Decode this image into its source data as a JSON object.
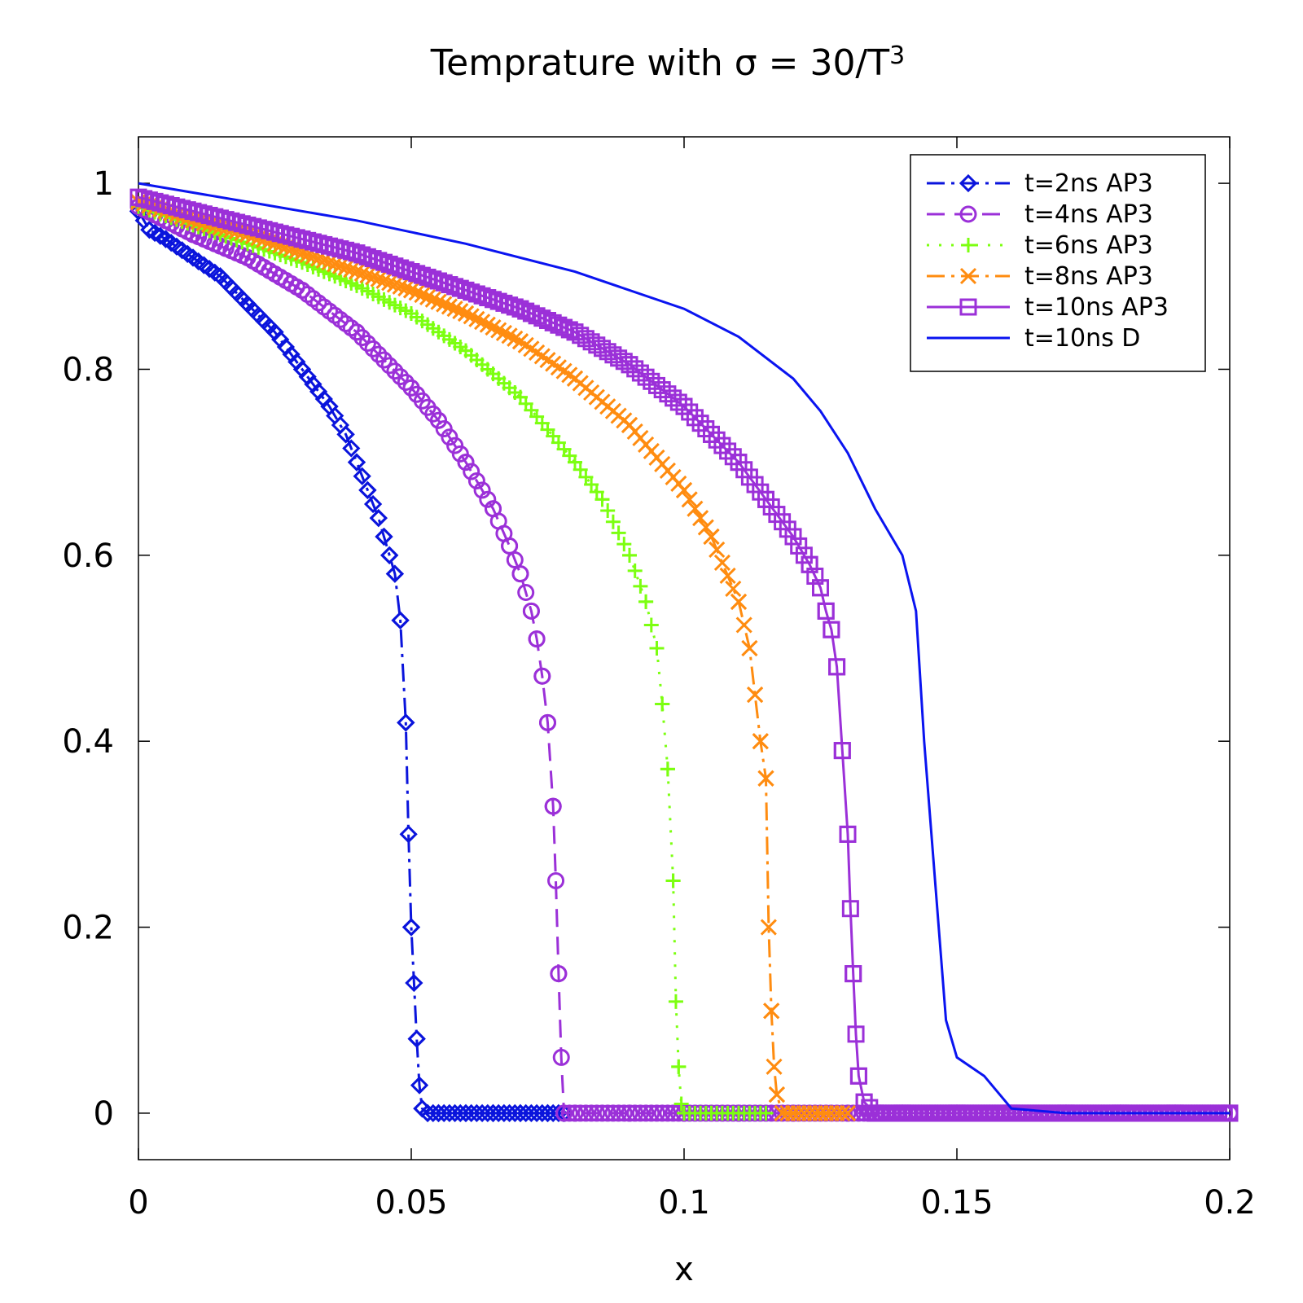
{
  "chart_data": {
    "type": "line",
    "title": "Temprature with σ = 30/T",
    "title_superscript": "3",
    "xlabel": "x",
    "ylabel": "",
    "xlim": [
      0,
      0.2
    ],
    "ylim": [
      -0.05,
      1.05
    ],
    "xticks": [
      0,
      0.05,
      0.1,
      0.15,
      0.2
    ],
    "xtick_labels": [
      "0",
      "0.05",
      "0.1",
      "0.15",
      "0.2"
    ],
    "yticks": [
      0,
      0.2,
      0.4,
      0.6,
      0.8,
      1
    ],
    "ytick_labels": [
      "0",
      "0.2",
      "0.4",
      "0.6",
      "0.8",
      "1"
    ],
    "grid": false,
    "legend_position": "top-right",
    "series": [
      {
        "name": "t=2ns AP3",
        "color": "#0a14dc",
        "marker": "diamond",
        "dash": "dashdot",
        "x": [
          0,
          0.002,
          0.005,
          0.01,
          0.015,
          0.02,
          0.025,
          0.03,
          0.035,
          0.038,
          0.04,
          0.042,
          0.044,
          0.045,
          0.046,
          0.047,
          0.048,
          0.049,
          0.0495,
          0.05,
          0.0505,
          0.051,
          0.0515,
          0.052,
          0.053,
          0.055,
          0.06,
          0.065,
          0.07,
          0.075,
          0.078
        ],
        "y": [
          0.97,
          0.95,
          0.94,
          0.92,
          0.9,
          0.87,
          0.84,
          0.8,
          0.76,
          0.73,
          0.7,
          0.67,
          0.64,
          0.62,
          0.6,
          0.58,
          0.53,
          0.42,
          0.3,
          0.2,
          0.14,
          0.08,
          0.03,
          0.005,
          0,
          0,
          0,
          0,
          0,
          0,
          0
        ]
      },
      {
        "name": "t=4ns AP3",
        "color": "#9b30d8",
        "marker": "circle",
        "dash": "dashed",
        "x": [
          0,
          0.005,
          0.01,
          0.02,
          0.03,
          0.04,
          0.05,
          0.055,
          0.06,
          0.065,
          0.068,
          0.07,
          0.072,
          0.073,
          0.074,
          0.075,
          0.076,
          0.0765,
          0.077,
          0.0775,
          0.078,
          0.08,
          0.09,
          0.1,
          0.11,
          0.12,
          0.13,
          0.14,
          0.15,
          0.16,
          0.17,
          0.18,
          0.19,
          0.2
        ],
        "y": [
          0.975,
          0.96,
          0.945,
          0.92,
          0.885,
          0.84,
          0.78,
          0.745,
          0.7,
          0.65,
          0.61,
          0.58,
          0.54,
          0.51,
          0.47,
          0.42,
          0.33,
          0.25,
          0.15,
          0.06,
          0,
          0,
          0,
          0,
          0,
          0,
          0,
          0,
          0,
          0,
          0,
          0,
          0,
          0
        ]
      },
      {
        "name": "t=6ns AP3",
        "color": "#7cff10",
        "marker": "plus",
        "dash": "dotted",
        "x": [
          0,
          0.01,
          0.02,
          0.03,
          0.04,
          0.05,
          0.06,
          0.07,
          0.08,
          0.085,
          0.09,
          0.093,
          0.095,
          0.096,
          0.097,
          0.098,
          0.0985,
          0.099,
          0.0995,
          0.1,
          0.105,
          0.11,
          0.115
        ],
        "y": [
          0.975,
          0.955,
          0.935,
          0.915,
          0.89,
          0.86,
          0.82,
          0.77,
          0.7,
          0.66,
          0.6,
          0.55,
          0.5,
          0.44,
          0.37,
          0.25,
          0.12,
          0.05,
          0.01,
          0,
          0,
          0,
          0
        ]
      },
      {
        "name": "t=8ns AP3",
        "color": "#ff8c10",
        "marker": "cross",
        "dash": "dashdot",
        "x": [
          0,
          0.01,
          0.02,
          0.03,
          0.04,
          0.05,
          0.06,
          0.07,
          0.08,
          0.09,
          0.1,
          0.105,
          0.11,
          0.112,
          0.113,
          0.114,
          0.115,
          0.1155,
          0.116,
          0.1165,
          0.117,
          0.118,
          0.12,
          0.125,
          0.13
        ],
        "y": [
          0.98,
          0.96,
          0.945,
          0.925,
          0.905,
          0.885,
          0.86,
          0.83,
          0.79,
          0.74,
          0.67,
          0.62,
          0.55,
          0.5,
          0.45,
          0.4,
          0.36,
          0.2,
          0.11,
          0.05,
          0.02,
          0,
          0,
          0,
          0
        ]
      },
      {
        "name": "t=10ns AP3",
        "color": "#9b30d8",
        "marker": "square",
        "dash": "solid",
        "x": [
          0,
          0.01,
          0.02,
          0.03,
          0.04,
          0.05,
          0.06,
          0.07,
          0.08,
          0.09,
          0.1,
          0.105,
          0.11,
          0.115,
          0.12,
          0.123,
          0.125,
          0.126,
          0.127,
          0.128,
          0.129,
          0.13,
          0.1305,
          0.131,
          0.1315,
          0.132,
          0.133,
          0.135,
          0.14,
          0.15,
          0.16,
          0.17,
          0.18,
          0.19,
          0.2
        ],
        "y": [
          0.985,
          0.97,
          0.955,
          0.94,
          0.925,
          0.905,
          0.885,
          0.865,
          0.84,
          0.805,
          0.76,
          0.73,
          0.7,
          0.66,
          0.62,
          0.59,
          0.565,
          0.54,
          0.52,
          0.48,
          0.39,
          0.3,
          0.22,
          0.15,
          0.085,
          0.04,
          0.012,
          0,
          0,
          0,
          0,
          0,
          0,
          0,
          0
        ]
      },
      {
        "name": "t=10ns D",
        "color": "#0a14f0",
        "marker": "none",
        "dash": "solid",
        "x": [
          0,
          0.02,
          0.04,
          0.06,
          0.08,
          0.1,
          0.11,
          0.12,
          0.125,
          0.13,
          0.135,
          0.14,
          0.1425,
          0.144,
          0.146,
          0.148,
          0.15,
          0.155,
          0.16,
          0.17,
          0.18,
          0.19,
          0.2
        ],
        "y": [
          1.0,
          0.98,
          0.96,
          0.935,
          0.905,
          0.865,
          0.835,
          0.79,
          0.755,
          0.71,
          0.65,
          0.6,
          0.54,
          0.4,
          0.25,
          0.1,
          0.06,
          0.04,
          0.005,
          0,
          0,
          0,
          0
        ]
      }
    ]
  }
}
